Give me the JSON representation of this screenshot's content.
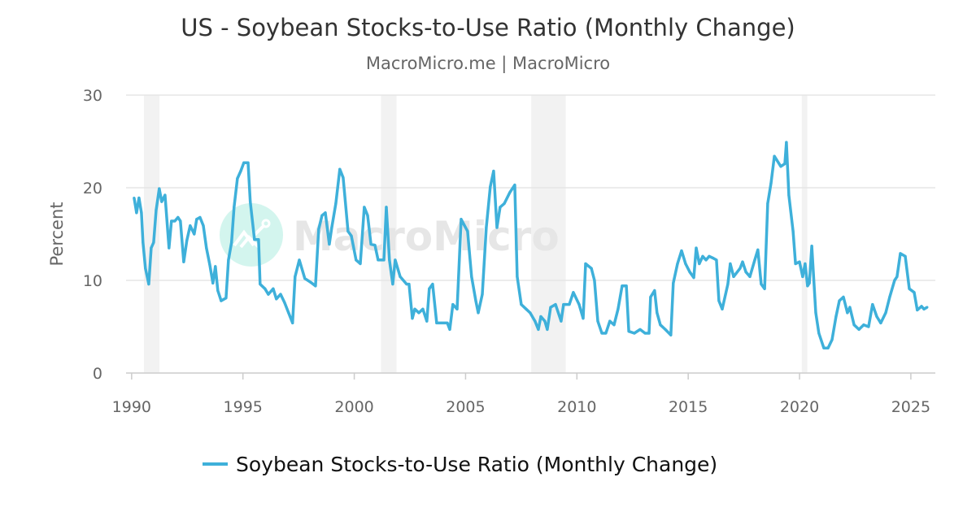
{
  "chart_data": {
    "type": "line",
    "title": "US - Soybean Stocks-to-Use Ratio (Monthly Change)",
    "subtitle": "MacroMicro.me | MacroMicro",
    "xlabel": "",
    "ylabel": "Percent",
    "xlim": [
      1989.75,
      2026.1
    ],
    "ylim": [
      0,
      30
    ],
    "x_ticks": [
      1990,
      1995,
      2000,
      2005,
      2010,
      2015,
      2020,
      2025
    ],
    "y_ticks": [
      0,
      10,
      20,
      30
    ],
    "grid": true,
    "legend_position": "bottom",
    "recession_bands": [
      [
        1990.55,
        1991.25
      ],
      [
        2001.2,
        2001.9
      ],
      [
        2007.95,
        2009.5
      ],
      [
        2020.1,
        2020.35
      ]
    ],
    "watermark": "MacroMicro",
    "colors": {
      "series": "#3eb0da",
      "band": "#f2f2f2",
      "grid": "#e6e6e6"
    },
    "series": [
      {
        "name": "Soybean Stocks-to-Use Ratio (Monthly Change)",
        "x": [
          1990.11,
          1990.22,
          1990.33,
          1990.44,
          1990.51,
          1990.62,
          1990.77,
          1990.88,
          1990.99,
          1991.1,
          1991.24,
          1991.35,
          1991.5,
          1991.68,
          1991.79,
          1991.94,
          1992.08,
          1992.19,
          1992.34,
          1992.48,
          1992.63,
          1992.81,
          1992.92,
          1993.07,
          1993.22,
          1993.36,
          1993.51,
          1993.65,
          1993.76,
          1993.87,
          1994.02,
          1994.24,
          1994.35,
          1994.49,
          1994.6,
          1994.75,
          1994.9,
          1995.04,
          1995.23,
          1995.33,
          1995.52,
          1995.7,
          1995.77,
          1995.99,
          1996.14,
          1996.36,
          1996.5,
          1996.69,
          1996.87,
          1997.05,
          1997.23,
          1997.34,
          1997.53,
          1997.78,
          1998.04,
          1998.26,
          1998.4,
          1998.55,
          1998.7,
          1998.88,
          1998.99,
          1999.17,
          1999.35,
          1999.5,
          1999.72,
          1999.87,
          2000.08,
          2000.27,
          2000.45,
          2000.6,
          2000.75,
          2000.93,
          2001.07,
          2001.33,
          2001.44,
          2001.58,
          2001.73,
          2001.84,
          2002.06,
          2002.35,
          2002.46,
          2002.61,
          2002.72,
          2002.9,
          2003.08,
          2003.26,
          2003.37,
          2003.52,
          2003.7,
          2003.92,
          2004.18,
          2004.29,
          2004.43,
          2004.62,
          2004.8,
          2004.91,
          2005.09,
          2005.27,
          2005.46,
          2005.57,
          2005.75,
          2005.93,
          2006.11,
          2006.26,
          2006.41,
          2006.55,
          2006.74,
          2006.99,
          2007.21,
          2007.32,
          2007.5,
          2007.72,
          2007.9,
          2008.12,
          2008.27,
          2008.38,
          2008.56,
          2008.67,
          2008.82,
          2009.04,
          2009.29,
          2009.4,
          2009.66,
          2009.84,
          2010.1,
          2010.28,
          2010.39,
          2010.65,
          2010.79,
          2010.94,
          2011.12,
          2011.3,
          2011.48,
          2011.67,
          2011.85,
          2012.03,
          2012.22,
          2012.33,
          2012.58,
          2012.84,
          2013.06,
          2013.24,
          2013.31,
          2013.49,
          2013.6,
          2013.75,
          2013.97,
          2014.22,
          2014.33,
          2014.52,
          2014.7,
          2014.88,
          2015.07,
          2015.25,
          2015.36,
          2015.5,
          2015.65,
          2015.8,
          2015.94,
          2016.12,
          2016.27,
          2016.38,
          2016.53,
          2016.78,
          2016.89,
          2017.04,
          2017.33,
          2017.44,
          2017.59,
          2017.77,
          2017.99,
          2018.13,
          2018.28,
          2018.43,
          2018.57,
          2018.72,
          2018.87,
          2019.16,
          2019.34,
          2019.41,
          2019.52,
          2019.71,
          2019.82,
          2020.0,
          2020.14,
          2020.25,
          2020.36,
          2020.44,
          2020.55,
          2020.73,
          2020.87,
          2021.09,
          2021.28,
          2021.46,
          2021.64,
          2021.79,
          2021.97,
          2022.15,
          2022.26,
          2022.45,
          2022.67,
          2022.88,
          2023.1,
          2023.28,
          2023.47,
          2023.65,
          2023.87,
          2024.05,
          2024.27,
          2024.38,
          2024.53,
          2024.75,
          2024.93,
          2025.15,
          2025.29,
          2025.48,
          2025.59,
          2025.73
        ],
        "values": [
          18.9,
          17.3,
          18.9,
          17.3,
          14.1,
          11.3,
          9.6,
          13.5,
          14.1,
          17.6,
          19.9,
          18.5,
          19.2,
          13.5,
          16.4,
          16.4,
          16.8,
          16.4,
          12.0,
          14.3,
          15.9,
          15.0,
          16.6,
          16.8,
          15.9,
          13.5,
          11.7,
          9.7,
          11.5,
          8.9,
          7.8,
          8.1,
          12.2,
          14.1,
          17.9,
          21.0,
          21.8,
          22.7,
          22.7,
          18.5,
          14.4,
          14.4,
          9.6,
          9.1,
          8.5,
          9.1,
          8.0,
          8.5,
          7.6,
          6.5,
          5.4,
          10.4,
          12.2,
          10.2,
          9.8,
          9.4,
          15.5,
          17.0,
          17.3,
          13.9,
          15.7,
          18.3,
          22.0,
          21.1,
          15.3,
          14.8,
          12.2,
          11.8,
          17.9,
          17.0,
          13.9,
          13.8,
          12.2,
          12.2,
          17.9,
          12.2,
          9.6,
          12.2,
          10.4,
          9.6,
          9.6,
          5.9,
          6.9,
          6.5,
          6.9,
          5.6,
          9.1,
          9.6,
          5.4,
          5.4,
          5.4,
          4.7,
          7.4,
          6.9,
          16.6,
          16.1,
          15.3,
          10.4,
          7.8,
          6.5,
          8.5,
          15.7,
          20.1,
          21.8,
          15.7,
          17.9,
          18.3,
          19.5,
          20.3,
          10.4,
          7.4,
          6.9,
          6.5,
          5.6,
          4.7,
          6.1,
          5.6,
          4.7,
          7.1,
          7.4,
          5.6,
          7.4,
          7.4,
          8.7,
          7.4,
          5.9,
          11.8,
          11.3,
          10.0,
          5.6,
          4.3,
          4.3,
          5.6,
          5.2,
          6.9,
          9.4,
          9.4,
          4.5,
          4.3,
          4.7,
          4.3,
          4.3,
          8.2,
          8.9,
          6.5,
          5.2,
          4.7,
          4.1,
          9.7,
          11.8,
          13.2,
          11.8,
          10.9,
          10.3,
          13.5,
          11.8,
          12.6,
          12.2,
          12.6,
          12.4,
          12.2,
          7.8,
          6.9,
          9.6,
          11.8,
          10.4,
          11.3,
          12.0,
          10.9,
          10.4,
          12.2,
          13.3,
          9.6,
          9.1,
          18.3,
          20.5,
          23.4,
          22.3,
          22.6,
          24.9,
          19.2,
          15.3,
          11.8,
          12.0,
          10.4,
          11.8,
          9.4,
          9.7,
          13.7,
          6.5,
          4.3,
          2.7,
          2.7,
          3.6,
          6.1,
          7.8,
          8.2,
          6.5,
          7.1,
          5.2,
          4.7,
          5.2,
          5.0,
          7.4,
          6.1,
          5.4,
          6.5,
          8.2,
          10.0,
          10.4,
          12.9,
          12.6,
          9.1,
          8.7,
          6.8,
          7.2,
          6.9,
          7.1
        ]
      }
    ]
  }
}
